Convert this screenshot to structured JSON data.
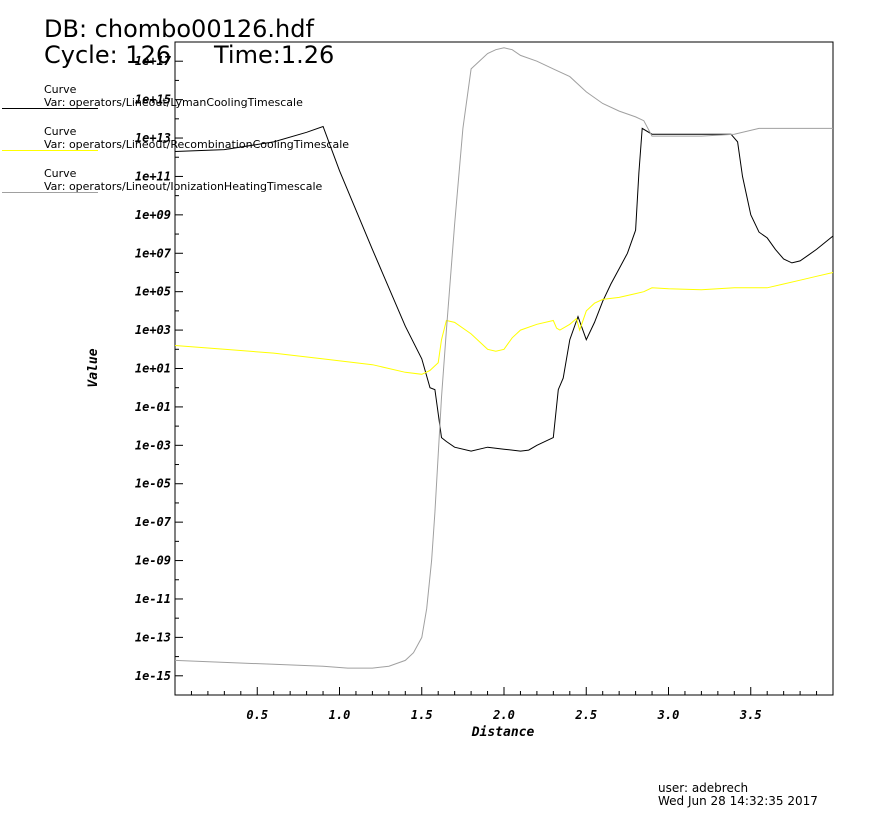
{
  "header": {
    "db": "DB: chombo00126.hdf",
    "cycle": "Cycle: 126",
    "time": "Time:1.26"
  },
  "footer": {
    "user": "user: adebrech",
    "date": "Wed Jun 28 14:32:35 2017"
  },
  "colors": {
    "lyman": "#000000",
    "recombination": "#ffff00",
    "ionization": "#a0a0a0",
    "axis": "#000000"
  },
  "chart_data": {
    "type": "line",
    "xlabel": "Distance",
    "ylabel": "Value",
    "yscale": "log",
    "xlim": [
      0,
      4.0
    ],
    "ylim_exp": [
      -16,
      18
    ],
    "xticks": [
      "0.5",
      "1.0",
      "1.5",
      "2.0",
      "2.5",
      "3.0",
      "3.5"
    ],
    "yticks": [
      "1e-15",
      "1e-13",
      "1e-11",
      "1e-09",
      "1e-07",
      "1e-05",
      "1e-03",
      "1e-01",
      "1e+01",
      "1e+03",
      "1e+05",
      "1e+07",
      "1e+09",
      "1e+11",
      "1e+13",
      "1e+15",
      "1e+17"
    ],
    "legend_position": "top-left",
    "series": [
      {
        "key": "lyman",
        "legend_title": "Curve",
        "name": "Var: operators/Lineout/LymanCoolingTimescale",
        "x": [
          0.0,
          0.3,
          0.6,
          0.8,
          0.9,
          1.0,
          1.2,
          1.4,
          1.5,
          1.55,
          1.58,
          1.62,
          1.65,
          1.7,
          1.8,
          1.9,
          2.0,
          2.1,
          2.15,
          2.2,
          2.3,
          2.33,
          2.36,
          2.4,
          2.45,
          2.5,
          2.55,
          2.6,
          2.65,
          2.7,
          2.75,
          2.8,
          2.82,
          2.84,
          2.9,
          3.0,
          3.2,
          3.38,
          3.42,
          3.45,
          3.5,
          3.55,
          3.6,
          3.65,
          3.7,
          3.75,
          3.8,
          3.85,
          3.9,
          4.0
        ],
        "y_exp": [
          12.3,
          12.4,
          12.8,
          13.3,
          13.6,
          11.3,
          7.2,
          3.2,
          1.5,
          0.0,
          -0.1,
          -2.6,
          -2.8,
          -3.1,
          -3.3,
          -3.1,
          -3.2,
          -3.3,
          -3.25,
          -3.0,
          -2.6,
          -0.1,
          0.5,
          2.5,
          3.7,
          2.5,
          3.4,
          4.5,
          5.4,
          6.2,
          7.0,
          8.2,
          11.2,
          13.5,
          13.2,
          13.2,
          13.2,
          13.2,
          12.8,
          11.0,
          9.0,
          8.1,
          7.8,
          7.2,
          6.7,
          6.5,
          6.6,
          6.9,
          7.2,
          7.9
        ]
      },
      {
        "key": "recombination",
        "legend_title": "Curve",
        "name": "Var: operators/Lineout/RecombinationCoolingTimescale",
        "x": [
          0.0,
          0.3,
          0.6,
          0.9,
          1.2,
          1.4,
          1.5,
          1.55,
          1.6,
          1.62,
          1.65,
          1.7,
          1.8,
          1.9,
          1.95,
          2.0,
          2.05,
          2.1,
          2.2,
          2.3,
          2.32,
          2.34,
          2.4,
          2.44,
          2.46,
          2.5,
          2.55,
          2.6,
          2.7,
          2.8,
          2.85,
          2.9,
          3.0,
          3.2,
          3.4,
          3.6,
          3.7,
          3.8,
          3.9,
          4.0
        ],
        "y_exp": [
          2.2,
          2.0,
          1.8,
          1.5,
          1.2,
          0.8,
          0.7,
          0.9,
          1.3,
          2.5,
          3.5,
          3.4,
          2.8,
          2.0,
          1.9,
          2.0,
          2.6,
          3.0,
          3.3,
          3.5,
          3.1,
          3.0,
          3.3,
          3.6,
          3.0,
          4.0,
          4.4,
          4.6,
          4.7,
          4.9,
          5.0,
          5.2,
          5.15,
          5.1,
          5.2,
          5.2,
          5.4,
          5.6,
          5.8,
          6.0
        ]
      },
      {
        "key": "ionization",
        "legend_title": "Curve",
        "name": "Var: operators/Lineout/IonizationHeatingTimescale",
        "x": [
          0.0,
          0.3,
          0.6,
          0.9,
          1.05,
          1.2,
          1.3,
          1.4,
          1.45,
          1.5,
          1.53,
          1.56,
          1.58,
          1.6,
          1.62,
          1.65,
          1.7,
          1.75,
          1.8,
          1.85,
          1.9,
          1.95,
          2.0,
          2.05,
          2.1,
          2.2,
          2.3,
          2.4,
          2.5,
          2.6,
          2.7,
          2.8,
          2.85,
          2.9,
          3.0,
          3.2,
          3.4,
          3.55,
          3.7,
          3.8,
          3.9,
          4.0
        ],
        "y_exp": [
          -14.2,
          -14.3,
          -14.4,
          -14.5,
          -14.6,
          -14.6,
          -14.5,
          -14.2,
          -13.8,
          -13.0,
          -11.5,
          -9.0,
          -6.5,
          -3.5,
          -0.5,
          3.0,
          8.5,
          13.5,
          16.6,
          17.0,
          17.4,
          17.6,
          17.7,
          17.6,
          17.3,
          17.0,
          16.6,
          16.2,
          15.4,
          14.8,
          14.4,
          14.1,
          13.9,
          13.1,
          13.1,
          13.1,
          13.2,
          13.5,
          13.5,
          13.5,
          13.5,
          13.5
        ]
      }
    ]
  }
}
